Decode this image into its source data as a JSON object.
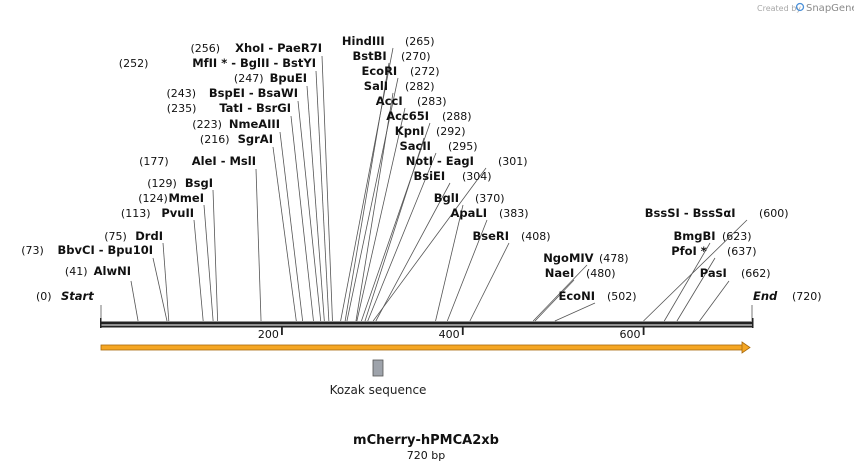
{
  "credit": {
    "prefix": "Created by",
    "brand": "SnapGene"
  },
  "map": {
    "name": "mCherry-hPMCA2xb",
    "length_label": "720 bp",
    "length": 720,
    "ticks": [
      {
        "bp": 200,
        "label": "200"
      },
      {
        "bp": 400,
        "label": "400"
      },
      {
        "bp": 600,
        "label": "600"
      }
    ],
    "start": {
      "label": "Start",
      "pos_label": "(0)",
      "bp": 0
    },
    "end": {
      "label": "End",
      "pos_label": "(720)",
      "bp": 720
    },
    "sites": [
      {
        "name": "AlwNI",
        "pos_label": "(41)",
        "bp": 41
      },
      {
        "name": "BbvCI - Bpu10I",
        "pos_label": "(73)",
        "bp": 73
      },
      {
        "name": "DrdI",
        "pos_label": "(75)",
        "bp": 75
      },
      {
        "name": "PvuII",
        "pos_label": "(113)",
        "bp": 113
      },
      {
        "name": "MmeI",
        "pos_label": "(124)",
        "bp": 124
      },
      {
        "name": "BsgI",
        "pos_label": "(129)",
        "bp": 129
      },
      {
        "name": "AleI - MslI",
        "pos_label": "(177)",
        "bp": 177
      },
      {
        "name": "SgrAI",
        "pos_label": "(216)",
        "bp": 216
      },
      {
        "name": "NmeAIII",
        "pos_label": "(223)",
        "bp": 223
      },
      {
        "name": "TatI - BsrGI",
        "pos_label": "(235)",
        "bp": 235
      },
      {
        "name": "BspEI - BsaWI",
        "pos_label": "(243)",
        "bp": 243
      },
      {
        "name": "BpuEI",
        "pos_label": "(247)",
        "bp": 247
      },
      {
        "name": "MfII * - BglII - BstYI",
        "pos_label": "(252)",
        "bp": 252
      },
      {
        "name": "XhoI - PaeR7I",
        "pos_label": "(256)",
        "bp": 256
      },
      {
        "name": "HindIII",
        "pos_label": "(265)",
        "bp": 265
      },
      {
        "name": "BstBI",
        "pos_label": "(270)",
        "bp": 270
      },
      {
        "name": "EcoRI",
        "pos_label": "(272)",
        "bp": 272
      },
      {
        "name": "SalI",
        "pos_label": "(282)",
        "bp": 282
      },
      {
        "name": "AccI",
        "pos_label": "(283)",
        "bp": 283
      },
      {
        "name": "Acc65I",
        "pos_label": "(288)",
        "bp": 288
      },
      {
        "name": "KpnI",
        "pos_label": "(292)",
        "bp": 292
      },
      {
        "name": "SacII",
        "pos_label": "(295)",
        "bp": 295
      },
      {
        "name": "NotI - EagI",
        "pos_label": "(301)",
        "bp": 301
      },
      {
        "name": "BsiEI",
        "pos_label": "(304)",
        "bp": 304
      },
      {
        "name": "BglI",
        "pos_label": "(370)",
        "bp": 370
      },
      {
        "name": "ApaLI",
        "pos_label": "(383)",
        "bp": 383
      },
      {
        "name": "BseRI",
        "pos_label": "(408)",
        "bp": 408
      },
      {
        "name": "NgoMIV",
        "pos_label": "(478)",
        "bp": 478
      },
      {
        "name": "NaeI",
        "pos_label": "(480)",
        "bp": 480
      },
      {
        "name": "EcoNI",
        "pos_label": "(502)",
        "bp": 502
      },
      {
        "name": "BssSI - BssSαI",
        "pos_label": "(600)",
        "bp": 600
      },
      {
        "name": "BmgBI",
        "pos_label": "(623)",
        "bp": 623
      },
      {
        "name": "PfoI *",
        "pos_label": "(637)",
        "bp": 637
      },
      {
        "name": "PasI",
        "pos_label": "(662)",
        "bp": 662
      }
    ],
    "features": [
      {
        "name": "mCherry ORF arrow",
        "bp_start": 0,
        "bp_end": 720,
        "color": "#f5a623"
      },
      {
        "name": "Kozak sequence",
        "label": "Kozak sequence",
        "bp_start": 303,
        "bp_end": 313,
        "color": "#9ea3ab"
      }
    ],
    "colors": {
      "backbone": "#222222",
      "arrow": "#f5a623",
      "arrow_outline": "#a8690c",
      "feature_box": "#9ea3ab"
    }
  }
}
